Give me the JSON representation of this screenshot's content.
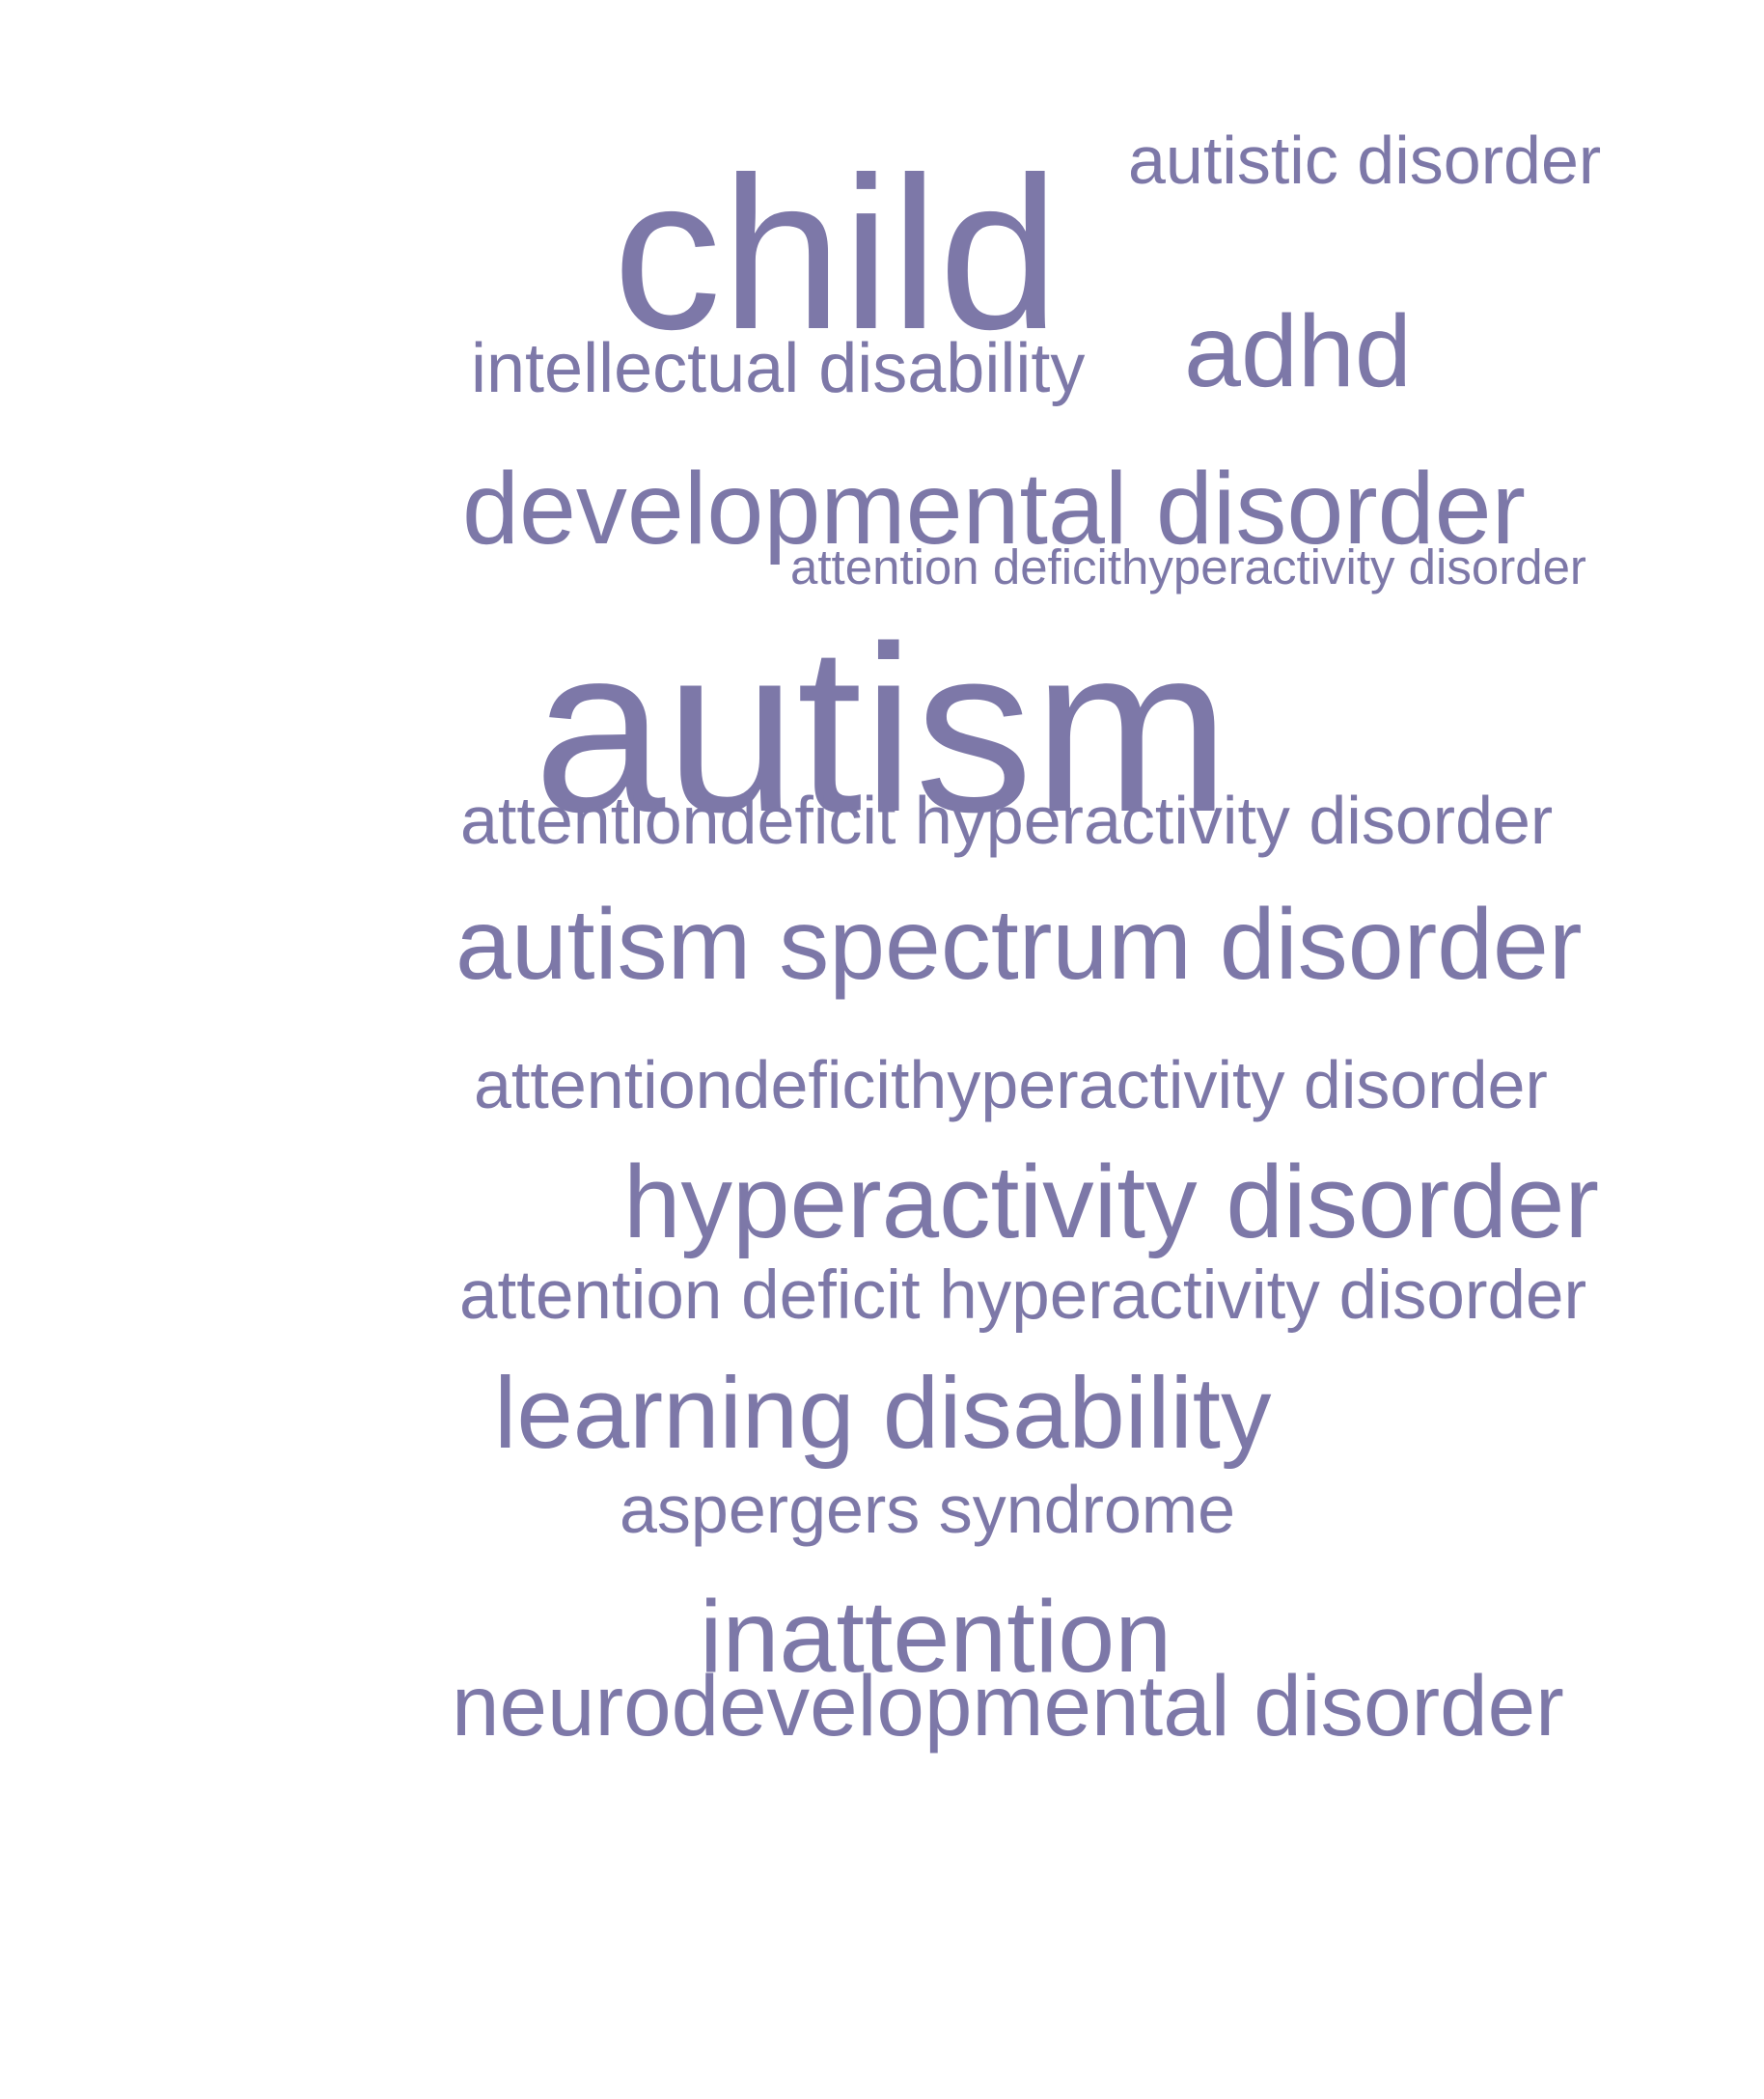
{
  "word_cloud": {
    "color": "#7d78a8",
    "words": [
      {
        "id": "child",
        "text": "child"
      },
      {
        "id": "autistic-disorder",
        "text": "autistic disorder"
      },
      {
        "id": "intellectual-disability",
        "text": "intellectual disability"
      },
      {
        "id": "adhd",
        "text": "adhd"
      },
      {
        "id": "developmental-disorder",
        "text": "developmental disorder"
      },
      {
        "id": "attention-deficithyperactivity-disorder",
        "text": "attention deficithyperactivity disorder"
      },
      {
        "id": "autism",
        "text": "autism"
      },
      {
        "id": "attentiondeficit-hyperactivity-disorder",
        "text": "attentiondeficit hyperactivity disorder"
      },
      {
        "id": "autism-spectrum-disorder",
        "text": "autism spectrum disorder"
      },
      {
        "id": "attentiondeficithyperactivity-disorder",
        "text": "attentiondeficithyperactivity disorder"
      },
      {
        "id": "hyperactivity-disorder",
        "text": "hyperactivity disorder"
      },
      {
        "id": "attention-deficit-hyperactivity-disorder",
        "text": "attention deficit hyperactivity disorder"
      },
      {
        "id": "learning-disability",
        "text": "learning disability"
      },
      {
        "id": "aspergers-syndrome",
        "text": "aspergers syndrome"
      },
      {
        "id": "inattention",
        "text": "inattention"
      },
      {
        "id": "neurodevelopmental-disorder",
        "text": "neurodevelopmental disorder"
      }
    ]
  }
}
